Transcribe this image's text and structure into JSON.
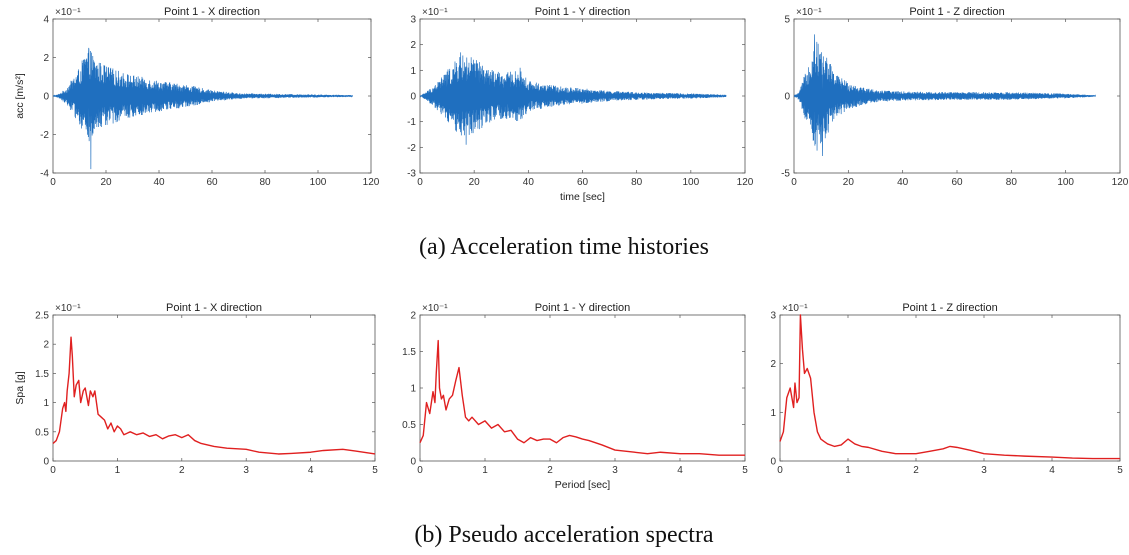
{
  "figure_captions": {
    "top": "(a) Acceleration time histories",
    "bottom": "(b) Pseudo acceleration spectra"
  },
  "colors": {
    "acc_line": "#1f6fbf",
    "spec_line": "#e02020"
  },
  "chart_data": [
    {
      "type": "line",
      "title": "Point 1 - X direction",
      "xlabel": "",
      "ylabel": "acc [m/s²]",
      "scale_factor": "×10⁻¹",
      "xlim": [
        0,
        120
      ],
      "ylim": [
        -4,
        4
      ],
      "xticks": [
        "0",
        "20",
        "40",
        "60",
        "80",
        "100",
        "120"
      ],
      "yticks": [
        "4",
        "2",
        "0",
        "-2",
        "-4"
      ],
      "signal_end": 113,
      "envelope": {
        "x": [
          0,
          2,
          5,
          10,
          12,
          14,
          16,
          20,
          25,
          30,
          40,
          50,
          60,
          70,
          80,
          90,
          100,
          113
        ],
        "y": [
          0,
          0.1,
          0.4,
          1.5,
          2.2,
          2.5,
          1.9,
          1.6,
          1.3,
          1.1,
          0.8,
          0.6,
          0.3,
          0.15,
          0.12,
          0.1,
          0.08,
          0.05
        ]
      },
      "peaks": {
        "x": [
          13.5,
          14.3
        ],
        "y": [
          2.5,
          -3.8
        ]
      }
    },
    {
      "type": "line",
      "title": "Point 1 - Y direction",
      "xlabel": "time [sec]",
      "ylabel": "",
      "scale_factor": "×10⁻¹",
      "xlim": [
        0,
        120
      ],
      "ylim": [
        -3,
        3
      ],
      "xticks": [
        "0",
        "20",
        "40",
        "60",
        "80",
        "100",
        "120"
      ],
      "yticks": [
        "3",
        "2",
        "1",
        "0",
        "-1",
        "-2",
        "-3"
      ],
      "signal_end": 113,
      "envelope": {
        "x": [
          0,
          2,
          5,
          10,
          15,
          20,
          25,
          30,
          37,
          40,
          50,
          60,
          70,
          80,
          90,
          100,
          113
        ],
        "y": [
          0,
          0.15,
          0.4,
          1.0,
          1.6,
          1.5,
          1.1,
          0.9,
          1.0,
          0.6,
          0.4,
          0.3,
          0.2,
          0.15,
          0.12,
          0.1,
          0.05
        ]
      },
      "peaks": {
        "x": [
          15,
          37,
          17
        ],
        "y": [
          1.7,
          1.1,
          -1.9
        ]
      }
    },
    {
      "type": "line",
      "title": "Point 1 - Z direction",
      "xlabel": "",
      "ylabel": "",
      "scale_factor": "×10⁻¹",
      "xlim": [
        0,
        120
      ],
      "ylim": [
        -5,
        5
      ],
      "xticks": [
        "0",
        "20",
        "40",
        "60",
        "80",
        "100",
        "120"
      ],
      "yticks": [
        "5",
        "0",
        "-5"
      ],
      "signal_end": 111,
      "envelope": {
        "x": [
          0,
          2,
          5,
          8,
          10,
          12,
          15,
          20,
          25,
          30,
          40,
          60,
          80,
          100,
          111
        ],
        "y": [
          0,
          0.3,
          2.0,
          3.8,
          3.0,
          2.7,
          1.5,
          0.9,
          0.6,
          0.4,
          0.3,
          0.25,
          0.25,
          0.15,
          0.05
        ]
      },
      "peaks": {
        "x": [
          7.5,
          10.5
        ],
        "y": [
          4.0,
          -3.9
        ]
      }
    },
    {
      "type": "line",
      "title": "Point 1 - X direction",
      "xlabel": "",
      "ylabel": "Spa [g]",
      "scale_factor": "×10⁻¹",
      "xlim": [
        0,
        5
      ],
      "ylim": [
        0,
        2.5
      ],
      "xticks": [
        "0",
        "1",
        "2",
        "3",
        "4",
        "5"
      ],
      "yticks": [
        "2.5",
        "2",
        "1.5",
        "1",
        "0.5",
        "0"
      ],
      "x": [
        0,
        0.05,
        0.1,
        0.15,
        0.18,
        0.2,
        0.22,
        0.25,
        0.28,
        0.3,
        0.33,
        0.36,
        0.4,
        0.43,
        0.47,
        0.5,
        0.55,
        0.58,
        0.62,
        0.65,
        0.7,
        0.75,
        0.8,
        0.85,
        0.9,
        0.95,
        1.0,
        1.05,
        1.1,
        1.2,
        1.3,
        1.4,
        1.5,
        1.6,
        1.7,
        1.8,
        1.9,
        2.0,
        2.1,
        2.2,
        2.3,
        2.5,
        2.7,
        3.0,
        3.2,
        3.5,
        3.7,
        4.0,
        4.2,
        4.5,
        4.7,
        5.0
      ],
      "y": [
        0.3,
        0.35,
        0.5,
        0.9,
        1.0,
        0.85,
        1.2,
        1.5,
        2.12,
        1.8,
        1.1,
        1.3,
        1.38,
        1.0,
        1.2,
        1.25,
        0.95,
        1.2,
        1.1,
        1.2,
        0.8,
        0.75,
        0.7,
        0.55,
        0.65,
        0.5,
        0.6,
        0.55,
        0.45,
        0.5,
        0.45,
        0.48,
        0.42,
        0.45,
        0.38,
        0.43,
        0.45,
        0.4,
        0.45,
        0.35,
        0.3,
        0.25,
        0.22,
        0.2,
        0.15,
        0.12,
        0.13,
        0.15,
        0.18,
        0.2,
        0.17,
        0.12
      ]
    },
    {
      "type": "line",
      "title": "Point 1 - Y direction",
      "xlabel": "Period [sec]",
      "ylabel": "",
      "scale_factor": "×10⁻¹",
      "xlim": [
        0,
        5
      ],
      "ylim": [
        0,
        2
      ],
      "xticks": [
        "0",
        "1",
        "2",
        "3",
        "4",
        "5"
      ],
      "yticks": [
        "2",
        "1.5",
        "1",
        "0.5",
        "0"
      ],
      "x": [
        0,
        0.05,
        0.1,
        0.15,
        0.2,
        0.23,
        0.25,
        0.28,
        0.3,
        0.33,
        0.36,
        0.4,
        0.45,
        0.5,
        0.55,
        0.6,
        0.65,
        0.7,
        0.75,
        0.8,
        0.9,
        1.0,
        1.1,
        1.2,
        1.3,
        1.4,
        1.5,
        1.6,
        1.7,
        1.8,
        1.9,
        2.0,
        2.1,
        2.2,
        2.3,
        2.4,
        2.5,
        2.6,
        2.8,
        3.0,
        3.3,
        3.5,
        3.7,
        4.0,
        4.3,
        4.6,
        5.0
      ],
      "y": [
        0.25,
        0.35,
        0.8,
        0.65,
        0.95,
        0.8,
        1.2,
        1.65,
        1.0,
        0.85,
        0.9,
        0.7,
        0.85,
        0.9,
        1.1,
        1.28,
        0.9,
        0.6,
        0.55,
        0.6,
        0.5,
        0.55,
        0.45,
        0.5,
        0.4,
        0.42,
        0.3,
        0.25,
        0.32,
        0.28,
        0.3,
        0.3,
        0.25,
        0.32,
        0.35,
        0.33,
        0.3,
        0.28,
        0.22,
        0.15,
        0.12,
        0.1,
        0.12,
        0.1,
        0.1,
        0.08,
        0.08
      ]
    },
    {
      "type": "line",
      "title": "Point 1 - Z direction",
      "xlabel": "",
      "ylabel": "",
      "scale_factor": "×10⁻¹",
      "xlim": [
        0,
        5
      ],
      "ylim": [
        0,
        3
      ],
      "xticks": [
        "0",
        "1",
        "2",
        "3",
        "4",
        "5"
      ],
      "yticks": [
        "3",
        "2",
        "1",
        "0"
      ],
      "x": [
        0,
        0.05,
        0.1,
        0.15,
        0.2,
        0.22,
        0.25,
        0.28,
        0.3,
        0.33,
        0.36,
        0.4,
        0.45,
        0.5,
        0.55,
        0.6,
        0.65,
        0.7,
        0.8,
        0.9,
        1.0,
        1.1,
        1.2,
        1.3,
        1.5,
        1.7,
        2.0,
        2.2,
        2.4,
        2.5,
        2.6,
        2.8,
        3.0,
        3.3,
        3.6,
        4.0,
        4.3,
        4.6,
        5.0
      ],
      "y": [
        0.4,
        0.6,
        1.3,
        1.5,
        1.1,
        1.6,
        1.2,
        1.3,
        3.0,
        2.3,
        1.8,
        1.9,
        1.7,
        1.0,
        0.6,
        0.45,
        0.4,
        0.35,
        0.3,
        0.33,
        0.45,
        0.35,
        0.3,
        0.28,
        0.2,
        0.15,
        0.15,
        0.2,
        0.25,
        0.3,
        0.28,
        0.22,
        0.15,
        0.12,
        0.1,
        0.08,
        0.06,
        0.05,
        0.05
      ]
    }
  ]
}
